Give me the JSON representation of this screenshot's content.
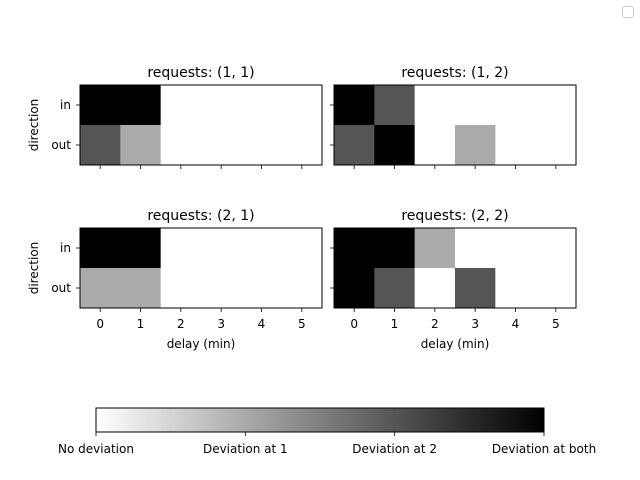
{
  "figure": {
    "colorbar": {
      "cmap": [
        "#ffffff",
        "#000000"
      ],
      "levels": [
        0,
        1,
        2,
        3
      ],
      "tick_labels": [
        "No deviation",
        "Deviation at 1",
        "Deviation at 2",
        "Deviation at both"
      ]
    },
    "legend": {
      "entries": [],
      "placement": "top-right"
    }
  },
  "chart_data": [
    {
      "type": "heatmap",
      "title": "requests: (1, 1)",
      "xlabel": "",
      "ylabel": "direction",
      "x": [
        0,
        1,
        2,
        3,
        4,
        5
      ],
      "y": [
        "in",
        "out"
      ],
      "x_tick_labels": [],
      "y_tick_labels": [
        "in",
        "out"
      ],
      "values": [
        [
          3,
          3,
          0,
          0,
          0,
          0
        ],
        [
          2,
          1,
          0,
          0,
          0,
          0
        ]
      ],
      "vmin": 0,
      "vmax": 3
    },
    {
      "type": "heatmap",
      "title": "requests: (1, 2)",
      "xlabel": "",
      "ylabel": "",
      "x": [
        0,
        1,
        2,
        3,
        4,
        5
      ],
      "y": [
        "in",
        "out"
      ],
      "x_tick_labels": [],
      "y_tick_labels": [],
      "values": [
        [
          3,
          2,
          0,
          0,
          0,
          0
        ],
        [
          2,
          3,
          0,
          1,
          0,
          0
        ]
      ],
      "vmin": 0,
      "vmax": 3
    },
    {
      "type": "heatmap",
      "title": "requests: (2, 1)",
      "xlabel": "delay (min)",
      "ylabel": "direction",
      "x": [
        0,
        1,
        2,
        3,
        4,
        5
      ],
      "y": [
        "in",
        "out"
      ],
      "x_tick_labels": [
        "0",
        "1",
        "2",
        "3",
        "4",
        "5"
      ],
      "y_tick_labels": [
        "in",
        "out"
      ],
      "values": [
        [
          3,
          3,
          0,
          0,
          0,
          0
        ],
        [
          1,
          1,
          0,
          0,
          0,
          0
        ]
      ],
      "vmin": 0,
      "vmax": 3
    },
    {
      "type": "heatmap",
      "title": "requests: (2, 2)",
      "xlabel": "delay (min)",
      "ylabel": "",
      "x": [
        0,
        1,
        2,
        3,
        4,
        5
      ],
      "y": [
        "in",
        "out"
      ],
      "x_tick_labels": [
        "0",
        "1",
        "2",
        "3",
        "4",
        "5"
      ],
      "y_tick_labels": [],
      "values": [
        [
          3,
          3,
          1,
          0,
          0,
          0
        ],
        [
          3,
          2,
          0,
          2,
          0,
          0
        ]
      ],
      "vmin": 0,
      "vmax": 3
    }
  ]
}
